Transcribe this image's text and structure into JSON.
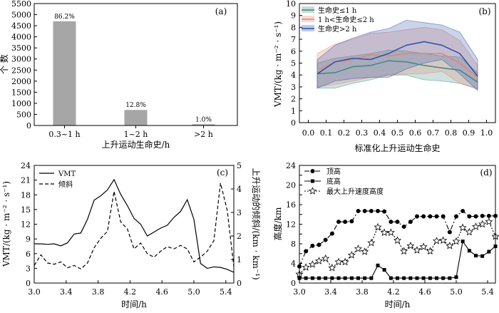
{
  "chart_data": [
    {
      "panel": "(a)",
      "type": "bar",
      "categories": [
        "0.3~1 h",
        "1~2 h",
        ">2 h"
      ],
      "values": [
        4700,
        700,
        55
      ],
      "data_labels": [
        "86.2%",
        "12.8%",
        "1.0%"
      ],
      "xlabel": "上升运动生命史/h",
      "ylabel": "个  数",
      "ylim": [
        0,
        5500
      ],
      "yticks": [
        "0",
        "500",
        "1000",
        "1500",
        "2000",
        "2500",
        "3000",
        "3500",
        "4000",
        "4500",
        "5000",
        "5500"
      ],
      "colors": {
        "bar": "#a6a6a6"
      }
    },
    {
      "panel": "(b)",
      "type": "line",
      "xlabel": "标准化上升运动生命史",
      "ylabel": "VMT/(kg · m⁻² · s⁻¹)",
      "xlim": [
        -0.05,
        1.05
      ],
      "ylim": [
        0,
        10
      ],
      "xticks": [
        "0.0",
        "0.1",
        "0.2",
        "0.3",
        "0.4",
        "0.5",
        "0.6",
        "0.7",
        "0.8",
        "0.9",
        "1.0"
      ],
      "yticks": [
        "0",
        "1",
        "2",
        "3",
        "4",
        "5",
        "6",
        "7",
        "8",
        "9",
        "10"
      ],
      "legend_position": "top-left",
      "x": [
        0.05,
        0.15,
        0.25,
        0.35,
        0.45,
        0.55,
        0.65,
        0.75,
        0.85,
        0.95
      ],
      "series": [
        {
          "name": "生命史≤1 h",
          "color": "#3a8a82",
          "values": [
            4.1,
            4.2,
            4.7,
            4.8,
            5.2,
            5.1,
            4.8,
            4.6,
            4.4,
            3.4
          ],
          "lower": [
            2.9,
            2.9,
            3.3,
            3.6,
            4.0,
            4.0,
            3.6,
            3.5,
            3.3,
            2.8
          ],
          "upper": [
            5.0,
            5.4,
            5.6,
            5.8,
            6.1,
            6.0,
            5.8,
            5.6,
            5.5,
            4.2
          ]
        },
        {
          "name": "1 h<生命史≤2 h",
          "color": "#e8836f",
          "values": [
            4.4,
            5.1,
            5.3,
            5.7,
            5.6,
            5.8,
            5.8,
            5.8,
            5.0,
            3.8
          ],
          "lower": [
            3.0,
            3.2,
            3.5,
            3.8,
            4.0,
            4.1,
            4.1,
            4.3,
            3.3,
            2.9
          ],
          "upper": [
            5.8,
            6.6,
            7.0,
            7.5,
            7.6,
            7.8,
            8.0,
            7.8,
            6.9,
            4.8
          ]
        },
        {
          "name": "生命史>2 h",
          "color": "#2a4fa8",
          "values": [
            4.1,
            5.1,
            5.4,
            5.3,
            5.8,
            6.5,
            6.8,
            6.5,
            5.8,
            3.9
          ],
          "lower": [
            2.9,
            3.5,
            3.7,
            3.8,
            3.8,
            4.5,
            5.0,
            5.3,
            4.1,
            2.7
          ],
          "upper": [
            5.3,
            6.5,
            7.1,
            7.6,
            7.9,
            8.6,
            8.4,
            8.2,
            7.6,
            5.3
          ]
        }
      ]
    },
    {
      "panel": "(c)",
      "type": "line",
      "xlabel": "时间/h",
      "ylabel": "VMT/(kg · m⁻² · s⁻¹)",
      "ylabel_right": "上升运动的倾斜/(km · km⁻¹)",
      "xlim": [
        3.0,
        5.5
      ],
      "ylim": [
        0,
        24
      ],
      "ylim_right": [
        0,
        5
      ],
      "xticks": [
        "3.0",
        "3.4",
        "3.8",
        "4.2",
        "4.6",
        "5.0",
        "5.4"
      ],
      "yticks": [
        "0",
        "3",
        "6",
        "9",
        "12",
        "15",
        "18",
        "21",
        "24"
      ],
      "yticks_right": [
        "0",
        "1",
        "2",
        "3",
        "4",
        "5"
      ],
      "legend_position": "top-left",
      "x": [
        3.0,
        3.083,
        3.167,
        3.25,
        3.333,
        3.417,
        3.5,
        3.583,
        3.667,
        3.75,
        3.833,
        3.917,
        4.0,
        4.083,
        4.167,
        4.25,
        4.333,
        4.417,
        4.5,
        4.583,
        4.667,
        4.75,
        4.833,
        4.917,
        5.0,
        5.083,
        5.167,
        5.25,
        5.333,
        5.417,
        5.5
      ],
      "series": [
        {
          "name": "VMT",
          "axis": "left",
          "style": "solid",
          "values": [
            8.0,
            8.0,
            7.9,
            8.0,
            7.6,
            8.2,
            10.0,
            10.2,
            13.0,
            16.9,
            17.8,
            19.0,
            21.1,
            18.1,
            15.8,
            13.2,
            12.0,
            9.6,
            10.4,
            11.2,
            11.8,
            13.4,
            14.6,
            17.0,
            13.0,
            4.0,
            3.0,
            3.3,
            3.2,
            2.8,
            2.2
          ]
        },
        {
          "name": "倾斜",
          "axis": "right",
          "style": "dashed",
          "values": [
            0.75,
            1.2,
            0.85,
            0.8,
            0.9,
            0.65,
            0.75,
            0.6,
            0.85,
            1.5,
            1.9,
            2.2,
            3.9,
            2.6,
            2.3,
            1.45,
            1.7,
            1.25,
            1.1,
            1.35,
            1.55,
            1.45,
            1.6,
            1.45,
            0.9,
            1.1,
            1.35,
            1.8,
            4.25,
            3.1,
            0.7
          ]
        }
      ]
    },
    {
      "panel": "(d)",
      "type": "line",
      "xlabel": "时间/h",
      "ylabel": "高度/km",
      "xlim": [
        3.0,
        5.5
      ],
      "ylim": [
        0,
        24
      ],
      "xticks": [
        "3.0",
        "3.4",
        "3.8",
        "4.2",
        "4.6",
        "5.0",
        "5.4"
      ],
      "yticks": [
        "0",
        "2",
        "4",
        "6",
        "8",
        "10",
        "12",
        "14",
        "16",
        "18",
        "20",
        "22",
        "24"
      ],
      "legend_position": "top-left",
      "x": [
        3.0,
        3.083,
        3.167,
        3.25,
        3.333,
        3.417,
        3.5,
        3.583,
        3.667,
        3.75,
        3.833,
        3.917,
        4.0,
        4.083,
        4.167,
        4.25,
        4.333,
        4.417,
        4.5,
        4.583,
        4.667,
        4.75,
        4.833,
        4.917,
        5.0,
        5.083,
        5.167,
        5.25,
        5.333,
        5.417,
        5.5
      ],
      "series": [
        {
          "name": "顶高",
          "marker": "circle",
          "style": "dashdot",
          "values": [
            3.4,
            6.5,
            7.6,
            7.8,
            8.8,
            10.1,
            12.5,
            12.5,
            12.6,
            14.7,
            14.7,
            14.7,
            14.7,
            14.6,
            12.5,
            12.5,
            11.5,
            12.5,
            13.6,
            13.6,
            13.6,
            13.6,
            13.6,
            10.4,
            13.6,
            14.7,
            13.6,
            13.6,
            13.7,
            13.7,
            13.7
          ]
        },
        {
          "name": "底高",
          "marker": "square",
          "style": "solid",
          "values": [
            1.0,
            1.0,
            1.0,
            1.0,
            1.0,
            1.0,
            1.0,
            1.0,
            1.0,
            1.0,
            1.0,
            1.0,
            3.6,
            2.7,
            1.0,
            1.0,
            1.0,
            1.0,
            1.0,
            1.0,
            1.0,
            1.0,
            1.0,
            1.0,
            1.2,
            8.5,
            6.6,
            5.6,
            5.5,
            6.4,
            7.5
          ]
        },
        {
          "name": "最大上升速度高度",
          "marker": "star",
          "style": "dotted",
          "values": [
            1.8,
            3.2,
            3.8,
            4.5,
            5.0,
            3.1,
            4.3,
            4.3,
            5.7,
            7.0,
            6.4,
            8.2,
            11.4,
            10.3,
            10.3,
            8.7,
            6.5,
            7.6,
            6.7,
            7.4,
            6.5,
            8.6,
            8.7,
            7.6,
            8.5,
            11.3,
            10.4,
            11.5,
            12.0,
            12.5,
            9.5
          ]
        }
      ]
    }
  ]
}
